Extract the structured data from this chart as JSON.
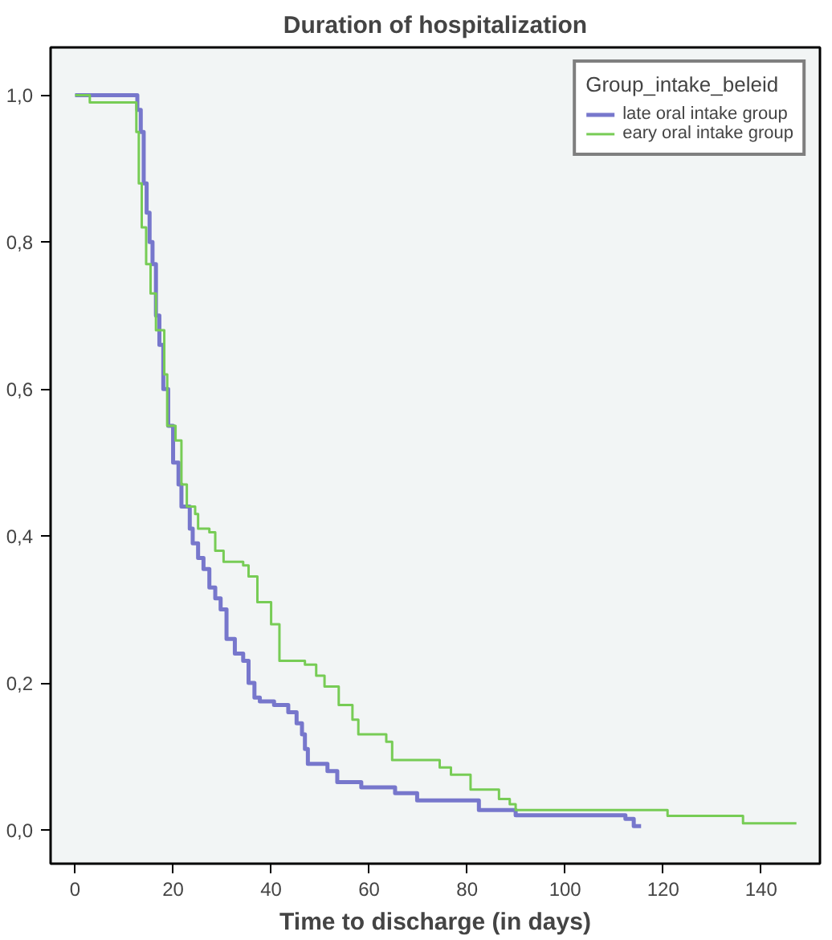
{
  "chart_data": {
    "type": "step",
    "title": "Duration of hospitalization",
    "xlabel": "Time to discharge (in days)",
    "legend_title": "Group_intake_beleid",
    "legend": "top right",
    "grid": false,
    "line_style": "solid",
    "xlim": [
      -5,
      152
    ],
    "ylim": [
      -0.046,
      1.065
    ],
    "xticks": [
      0,
      20,
      40,
      60,
      80,
      100,
      120,
      140
    ],
    "yticks": [
      {
        "value": 0.0,
        "label": "0,0"
      },
      {
        "value": 0.2,
        "label": "0,2"
      },
      {
        "value": 0.4,
        "label": "0,4"
      },
      {
        "value": 0.6,
        "label": "0,6"
      },
      {
        "value": 0.8,
        "label": "0,8"
      },
      {
        "value": 1.0,
        "label": "1,0"
      }
    ],
    "series": [
      {
        "name": "late oral intake group",
        "color": "#7777cc",
        "x": [
          0,
          12.7,
          13.4,
          14,
          14.6,
          15.2,
          15.8,
          16.5,
          17.2,
          18,
          19,
          20,
          21.1,
          21.7,
          23.4,
          24,
          25.1,
          26.2,
          27.4,
          28.6,
          29.7,
          30.9,
          32.6,
          34.3,
          35.4,
          36.6,
          37.7,
          40.6,
          43.5,
          45.2,
          46.3,
          46.9,
          47.5,
          51.5,
          53.5,
          58.4,
          65.3,
          69.8,
          82.4,
          89.9,
          112.3,
          114,
          115.5
        ],
        "values": [
          1.0,
          0.98,
          0.95,
          0.88,
          0.84,
          0.8,
          0.77,
          0.7,
          0.66,
          0.6,
          0.55,
          0.5,
          0.47,
          0.44,
          0.41,
          0.39,
          0.37,
          0.355,
          0.33,
          0.315,
          0.3,
          0.26,
          0.24,
          0.23,
          0.2,
          0.18,
          0.175,
          0.17,
          0.16,
          0.145,
          0.13,
          0.11,
          0.09,
          0.08,
          0.065,
          0.058,
          0.05,
          0.04,
          0.027,
          0.02,
          0.015,
          0.005,
          0.005
        ]
      },
      {
        "name": "eary oral intake group",
        "color": "#77cc55",
        "x": [
          0,
          3,
          12.5,
          13,
          13.6,
          14.5,
          15.4,
          16.5,
          18.2,
          18.8,
          20.5,
          21.7,
          22.8,
          24.5,
          25.1,
          27.4,
          28.6,
          30.3,
          34.3,
          35.4,
          37.2,
          40,
          41.7,
          46.9,
          49.2,
          50.9,
          53.8,
          56.6,
          57.8,
          63.5,
          64.7,
          74.4,
          76.7,
          80.7,
          86.5,
          88.7,
          89.9,
          120.9,
          136.3,
          147.2
        ],
        "values": [
          1.0,
          0.99,
          0.95,
          0.88,
          0.82,
          0.77,
          0.73,
          0.68,
          0.62,
          0.55,
          0.53,
          0.47,
          0.44,
          0.43,
          0.41,
          0.405,
          0.38,
          0.365,
          0.36,
          0.345,
          0.31,
          0.28,
          0.23,
          0.225,
          0.21,
          0.195,
          0.17,
          0.15,
          0.13,
          0.12,
          0.095,
          0.085,
          0.075,
          0.055,
          0.042,
          0.035,
          0.027,
          0.019,
          0.009,
          0.009
        ]
      }
    ]
  }
}
